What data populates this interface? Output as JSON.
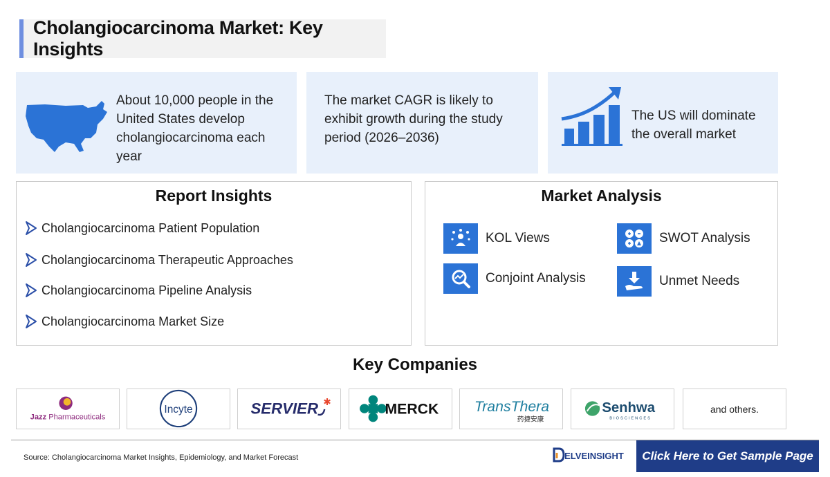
{
  "header": {
    "title": "Cholangiocarcinoma Market: Key Insights"
  },
  "stats": [
    {
      "icon": "us-map-icon",
      "text": "About 10,000 people in the United States develop cholangiocarcinoma each year"
    },
    {
      "icon": "",
      "text": "The market CAGR is likely to exhibit growth during the study period (2026–2036)"
    },
    {
      "icon": "growth-chart-icon",
      "text": "The US will dominate the overall market"
    }
  ],
  "report_insights": {
    "title": "Report Insights",
    "items": [
      "Cholangiocarcinoma Patient Population",
      "Cholangiocarcinoma Therapeutic Approaches",
      "Cholangiocarcinoma Pipeline Analysis",
      "Cholangiocarcinoma Market Size"
    ]
  },
  "market_analysis": {
    "title": "Market Analysis",
    "items": [
      {
        "label": "KOL Views",
        "icon": "kol-views-icon"
      },
      {
        "label": "SWOT Analysis",
        "icon": "swot-icon"
      },
      {
        "label": "Conjoint Analysis",
        "icon": "conjoint-analysis-icon"
      },
      {
        "label": "Unmet Needs",
        "icon": "unmet-needs-icon"
      }
    ]
  },
  "key_companies": {
    "title": "Key Companies",
    "logos": [
      {
        "name": "Jazz Pharmaceuticals",
        "wordmark": "Jazz Pharmaceuticals"
      },
      {
        "name": "Incyte",
        "wordmark": "Incyte"
      },
      {
        "name": "Servier",
        "wordmark": "SERVIER"
      },
      {
        "name": "Merck",
        "wordmark": "MERCK"
      },
      {
        "name": "TransThera",
        "wordmark": "TransThera",
        "subtitle": "药捷安康"
      },
      {
        "name": "Senhwa Biosciences",
        "wordmark": "Senhwa",
        "subtitle": "BIOSCIENCES"
      }
    ],
    "others_text": "and others."
  },
  "footer": {
    "source": "Source: Cholangiocarcinoma Market Insights, Epidemiology, and Market Forecast",
    "brand": "DELVEINSIGHT",
    "cta": "Click Here to Get Sample Page"
  },
  "colors": {
    "accent": "#2b73d6",
    "card_bg": "#e8f0fb",
    "cta_bg": "#1f3d88",
    "title_bar": "#6f8fe0"
  }
}
